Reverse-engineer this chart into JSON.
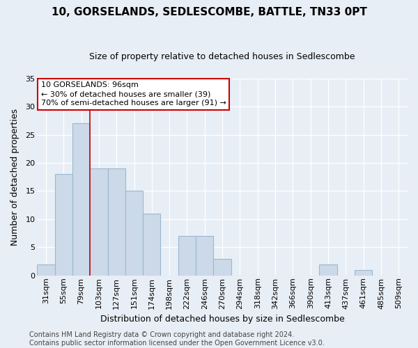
{
  "title": "10, GORSELANDS, SEDLESCOMBE, BATTLE, TN33 0PT",
  "subtitle": "Size of property relative to detached houses in Sedlescombe",
  "xlabel": "Distribution of detached houses by size in Sedlescombe",
  "ylabel": "Number of detached properties",
  "categories": [
    "31sqm",
    "55sqm",
    "79sqm",
    "103sqm",
    "127sqm",
    "151sqm",
    "174sqm",
    "198sqm",
    "222sqm",
    "246sqm",
    "270sqm",
    "294sqm",
    "318sqm",
    "342sqm",
    "366sqm",
    "390sqm",
    "413sqm",
    "437sqm",
    "461sqm",
    "485sqm",
    "509sqm"
  ],
  "values": [
    2,
    18,
    27,
    19,
    19,
    15,
    11,
    0,
    7,
    7,
    3,
    0,
    0,
    0,
    0,
    0,
    2,
    0,
    1,
    0,
    0
  ],
  "bar_color": "#ccd9e8",
  "bar_edge_color": "#9ab8d0",
  "background_color": "#e8eef5",
  "grid_color": "#ffffff",
  "vline_color": "#cc0000",
  "vline_position": 3,
  "annotation_text": "10 GORSELANDS: 96sqm\n← 30% of detached houses are smaller (39)\n70% of semi-detached houses are larger (91) →",
  "annotation_box_facecolor": "#ffffff",
  "annotation_box_edgecolor": "#cc0000",
  "footer_text": "Contains HM Land Registry data © Crown copyright and database right 2024.\nContains public sector information licensed under the Open Government Licence v3.0.",
  "ylim": [
    0,
    35
  ],
  "yticks": [
    0,
    5,
    10,
    15,
    20,
    25,
    30,
    35
  ],
  "title_fontsize": 11,
  "subtitle_fontsize": 9,
  "axis_label_fontsize": 9,
  "tick_fontsize": 8,
  "annotation_fontsize": 8,
  "footer_fontsize": 7
}
